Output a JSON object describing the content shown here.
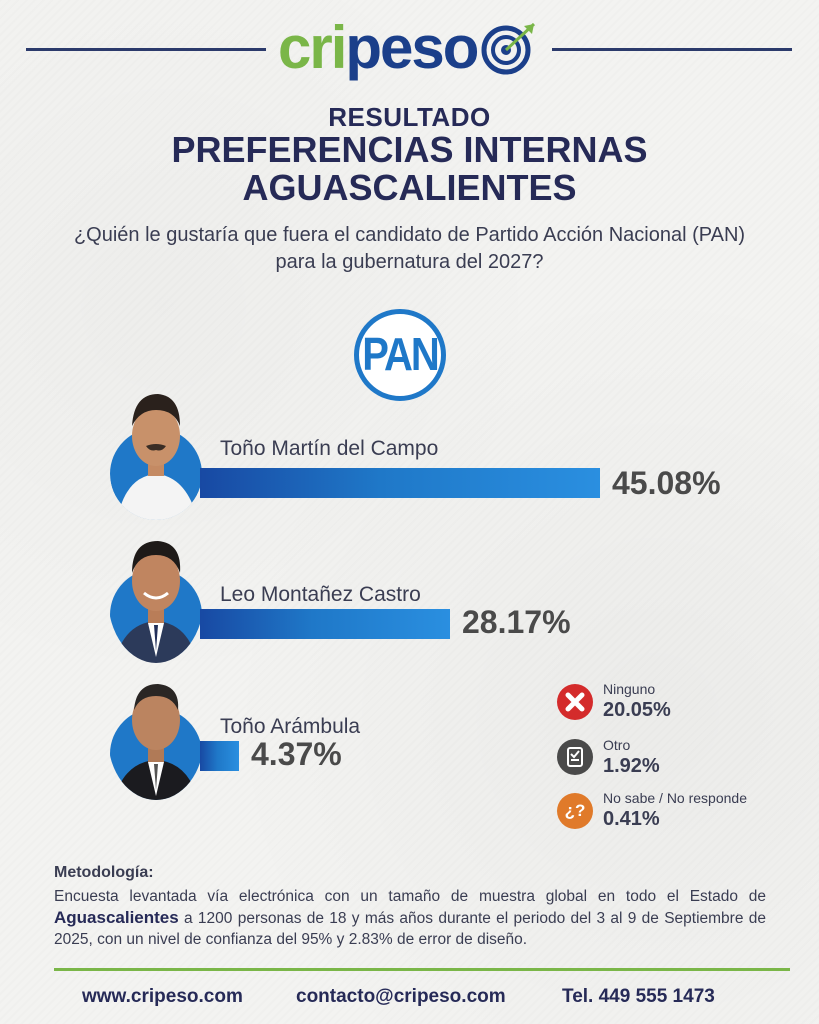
{
  "brand": {
    "logo_a": "cri",
    "logo_b": "peso",
    "green": "#7ab648",
    "navy": "#1b3f8a"
  },
  "header": {
    "kicker": "RESULTADO",
    "title_line1": "PREFERENCIAS INTERNAS",
    "title_line2": "AGUASCALIENTES",
    "question_line1": "¿Quién le gustaría que fuera el candidato de Partido Acción Nacional (PAN)",
    "question_line2": "para la gubernatura del 2027?"
  },
  "party": {
    "logo_text": "PAN",
    "color": "#1f78c8"
  },
  "chart_data": {
    "type": "bar",
    "categories": [
      "Toño Martín del Campo",
      "Leo Montañez Castro",
      "Toño Arámbula"
    ],
    "values": [
      45.08,
      28.17,
      4.37
    ],
    "value_labels": [
      "45.08%",
      "28.17%",
      "4.37%"
    ],
    "other_answers": [
      {
        "label": "Ninguno",
        "value": 20.05,
        "value_label": "20.05%",
        "icon": "x-icon",
        "color": "#d42b2b"
      },
      {
        "label": "Otro",
        "value": 1.92,
        "value_label": "1.92%",
        "icon": "ballot-icon",
        "color": "#4a4a4a"
      },
      {
        "label": "No sabe / No responde",
        "value": 0.41,
        "value_label": "0.41%",
        "icon": "question-icon",
        "color": "#e07a2a"
      }
    ]
  },
  "methodology": {
    "title": "Metodología:",
    "text_a": "Encuesta levantada vía electrónica con un tamaño de muestra global en todo el Estado de ",
    "text_bold": "Aguascalientes",
    "text_b": " a 1200 personas de 18 y más años durante el periodo del 3 al 9 de Septiembre de 2025, con un nivel de confianza del 95% y 2.83% de error de diseño."
  },
  "footer": {
    "website": "www.cripeso.com",
    "email": "contacto@cripeso.com",
    "phone": "Tel. 449 555 1473"
  }
}
